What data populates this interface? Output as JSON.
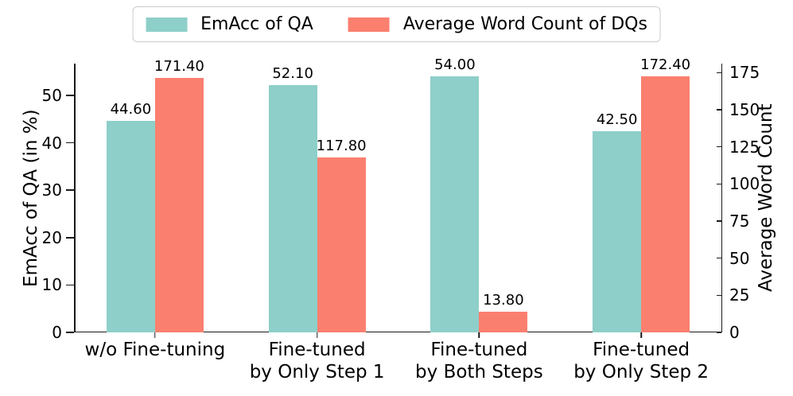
{
  "figure": {
    "background": "#ffffff",
    "text_color": "#000000",
    "spine_color": "#1a1a1a"
  },
  "legend": {
    "items": [
      {
        "label": "EmAcc of QA",
        "color": "#8ECFC9"
      },
      {
        "label": "Average Word Count of DQs",
        "color": "#FA7F6F"
      }
    ]
  },
  "chart_data": {
    "type": "bar",
    "categories": [
      "w/o Fine-tuning",
      "Fine-tuned\nby Only Step 1",
      "Fine-tuned\nby Both Steps",
      "Fine-tuned\nby Only Step 2"
    ],
    "series": [
      {
        "name": "EmAcc of QA",
        "axis": "left",
        "color": "#8ECFC9",
        "values": [
          44.6,
          52.1,
          54.0,
          42.5
        ],
        "value_labels": [
          "44.60",
          "52.10",
          "54.00",
          "42.50"
        ]
      },
      {
        "name": "Average Word Count of DQs",
        "axis": "right",
        "color": "#FA7F6F",
        "values": [
          171.4,
          117.8,
          13.8,
          172.4
        ],
        "value_labels": [
          "171.40",
          "117.80",
          "13.80",
          "172.40"
        ]
      }
    ],
    "left_axis": {
      "label": "EmAcc of QA (in %)",
      "ticks": [
        0,
        10,
        20,
        30,
        40,
        50
      ],
      "ylim": [
        0,
        56.7
      ]
    },
    "right_axis": {
      "label": "Average Word Count",
      "ticks": [
        0,
        25,
        50,
        75,
        100,
        125,
        150,
        175
      ],
      "ylim": [
        0,
        181.0
      ]
    },
    "grid": false,
    "legend_position": "top-center"
  }
}
